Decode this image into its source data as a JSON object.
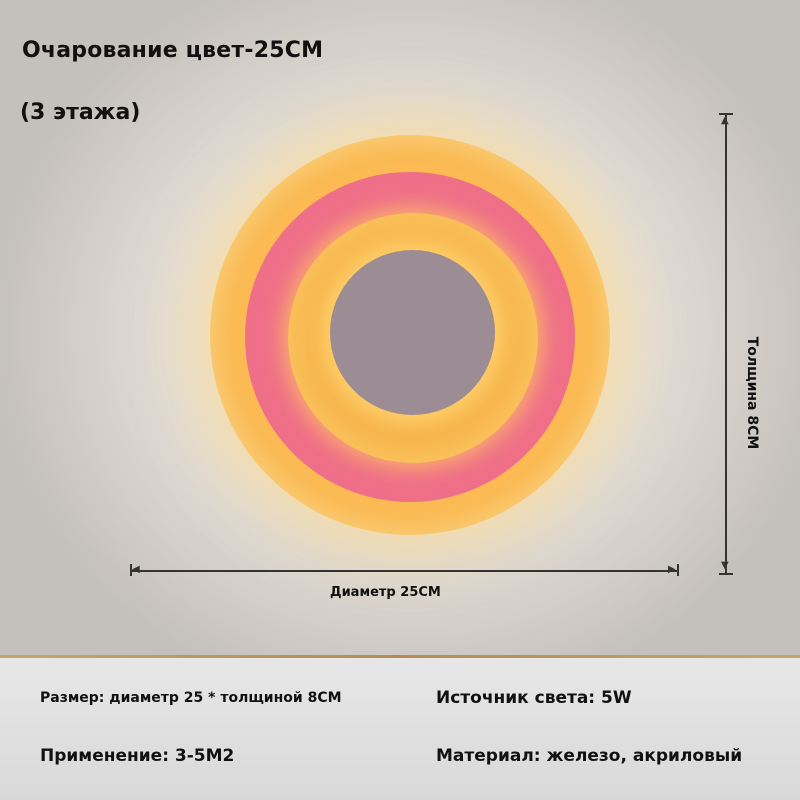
{
  "header": {
    "title": "Очарование цвет-25CM",
    "subtitle": "(3 этажа)"
  },
  "lamp": {
    "colors": {
      "outer_ring": "#f9b850",
      "pink_ring": "#f55f7f",
      "inner_ring": "#fbc864",
      "core": "#9b8d93"
    }
  },
  "dimensions": {
    "diameter_label": "Диаметр 25CM",
    "thickness_label": "Толщина 8CM"
  },
  "specs": {
    "size": "Размер: диаметр 25 * толщиной 8CM",
    "light_source": "Источник света: 5W",
    "application": "Применение: 3-5M2",
    "material": "Материал: железо, акриловый"
  }
}
